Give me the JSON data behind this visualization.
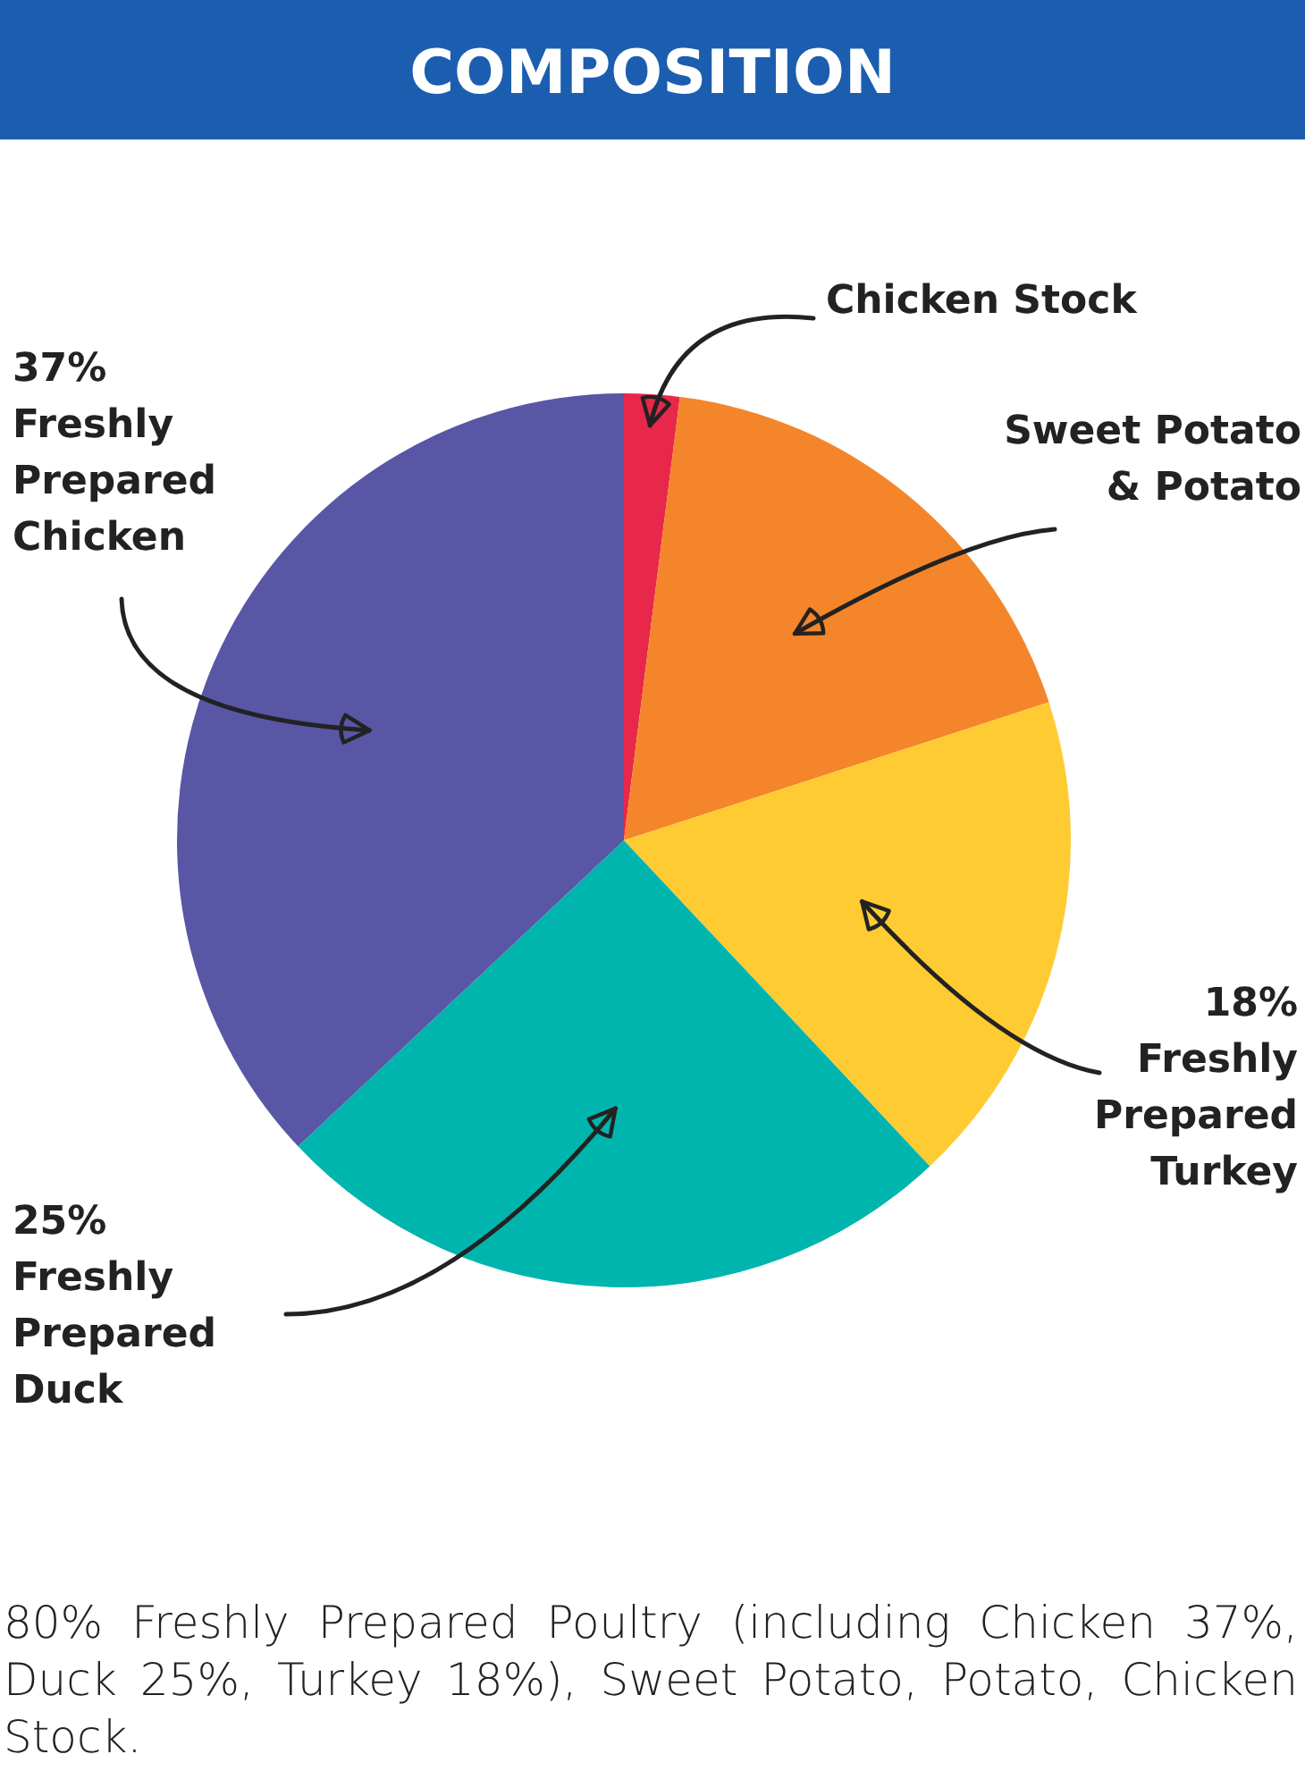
{
  "chart_data": {
    "type": "pie",
    "title": "COMPOSITION",
    "categories": [
      "Chicken Stock",
      "Sweet Potato & Potato",
      "Freshly Prepared Turkey",
      "Freshly Prepared Duck",
      "Freshly Prepared Chicken"
    ],
    "values": [
      2,
      18,
      18,
      25,
      37
    ],
    "colors": [
      "#e8274a",
      "#f5852a",
      "#fecb33",
      "#00b5ad",
      "#5856a5"
    ],
    "value_labels": [
      null,
      null,
      "18%",
      "25%",
      "37%"
    ],
    "annotations": [
      "80% Freshly Prepared Poultry (including Chicken 37%, Duck 25%, Turkey 18%), Sweet Potato, Potato, Chicken Stock."
    ]
  }
}
